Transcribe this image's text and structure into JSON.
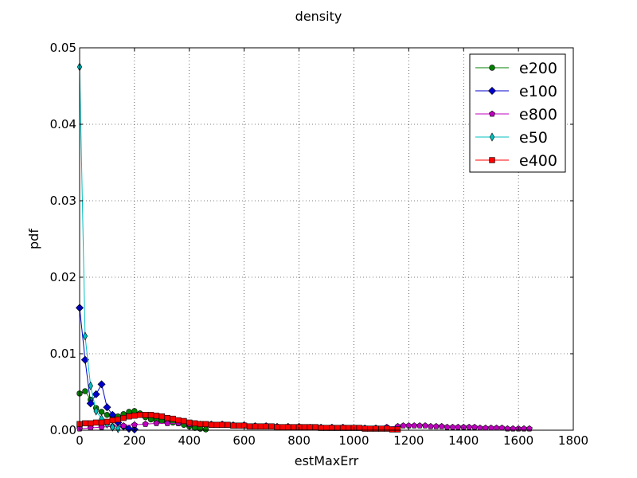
{
  "chart_data": {
    "type": "line",
    "title": "density",
    "xlabel": "estMaxErr",
    "ylabel": "pdf",
    "xlim": [
      0,
      1800
    ],
    "ylim": [
      0,
      0.05
    ],
    "x_ticks": [
      "0",
      "200",
      "400",
      "600",
      "800",
      "1000",
      "1200",
      "1400",
      "1600",
      "1800"
    ],
    "y_ticks": [
      "0.00",
      "0.01",
      "0.02",
      "0.03",
      "0.04",
      "0.05"
    ],
    "grid": true,
    "legend_position": "top-right",
    "series": [
      {
        "name": "e200",
        "color": "#007f00",
        "marker": "circle",
        "x": [
          0,
          20,
          40,
          60,
          80,
          100,
          120,
          140,
          160,
          180,
          200,
          220,
          240,
          260,
          280,
          300,
          320,
          340,
          360,
          380,
          400,
          420,
          440,
          460
        ],
        "y": [
          0.0048,
          0.0051,
          0.004,
          0.0029,
          0.0024,
          0.002,
          0.0017,
          0.0018,
          0.0021,
          0.0024,
          0.0025,
          0.0022,
          0.0017,
          0.0014,
          0.0013,
          0.0012,
          0.0011,
          0.001,
          0.0009,
          0.0007,
          0.0005,
          0.0003,
          0.0002,
          0.0001
        ]
      },
      {
        "name": "e100",
        "color": "#0000cc",
        "marker": "diamond",
        "x": [
          0,
          20,
          40,
          60,
          80,
          100,
          120,
          140,
          160,
          180,
          200
        ],
        "y": [
          0.016,
          0.0092,
          0.0035,
          0.0047,
          0.006,
          0.003,
          0.002,
          0.001,
          0.0005,
          0.0002,
          0.0001
        ]
      },
      {
        "name": "e800",
        "color": "#bf00bf",
        "marker": "pentagon",
        "x": [
          0,
          40,
          80,
          120,
          160,
          200,
          240,
          280,
          320,
          360,
          400,
          440,
          480,
          520,
          560,
          600,
          640,
          680,
          720,
          760,
          800,
          840,
          880,
          920,
          960,
          1000,
          1040,
          1080,
          1120,
          1160,
          1180,
          1200,
          1220,
          1240,
          1260,
          1280,
          1300,
          1320,
          1340,
          1360,
          1380,
          1400,
          1420,
          1440,
          1460,
          1480,
          1500,
          1520,
          1540,
          1560,
          1580,
          1600,
          1620,
          1640
        ],
        "y": [
          0.0002,
          0.0003,
          0.0004,
          0.0005,
          0.0006,
          0.0007,
          0.0008,
          0.0009,
          0.0009,
          0.0009,
          0.0008,
          0.0008,
          0.0008,
          0.0008,
          0.0007,
          0.0007,
          0.0006,
          0.0006,
          0.0005,
          0.0005,
          0.0005,
          0.0004,
          0.0004,
          0.0004,
          0.0004,
          0.0003,
          0.0003,
          0.0003,
          0.0004,
          0.0005,
          0.0006,
          0.0006,
          0.0006,
          0.0006,
          0.0006,
          0.0005,
          0.0005,
          0.0005,
          0.0004,
          0.0004,
          0.0004,
          0.0004,
          0.0004,
          0.0004,
          0.0003,
          0.0003,
          0.0003,
          0.0003,
          0.0003,
          0.0002,
          0.0002,
          0.0002,
          0.0002,
          0.0002
        ]
      },
      {
        "name": "e50",
        "color": "#00bfbf",
        "marker": "thin_diamond",
        "x": [
          0,
          20,
          40,
          60,
          80,
          100,
          120,
          140
        ],
        "y": [
          0.0475,
          0.0123,
          0.0058,
          0.0025,
          0.0015,
          0.0008,
          0.0004,
          0.0002
        ]
      },
      {
        "name": "e400",
        "color": "#ff0000",
        "marker": "square",
        "x": [
          0,
          20,
          40,
          60,
          80,
          100,
          120,
          140,
          160,
          180,
          200,
          220,
          240,
          260,
          280,
          300,
          320,
          340,
          360,
          380,
          400,
          420,
          440,
          460,
          480,
          500,
          520,
          540,
          560,
          580,
          600,
          620,
          640,
          660,
          680,
          700,
          720,
          740,
          760,
          780,
          800,
          820,
          840,
          860,
          880,
          900,
          920,
          940,
          960,
          980,
          1000,
          1020,
          1040,
          1060,
          1080,
          1100,
          1120,
          1140,
          1160
        ],
        "y": [
          0.0008,
          0.0009,
          0.0009,
          0.001,
          0.001,
          0.0011,
          0.0013,
          0.0014,
          0.0016,
          0.0018,
          0.0019,
          0.002,
          0.002,
          0.002,
          0.0019,
          0.0018,
          0.0016,
          0.0015,
          0.0013,
          0.0012,
          0.001,
          0.0009,
          0.0008,
          0.0008,
          0.0007,
          0.0007,
          0.0007,
          0.0007,
          0.0006,
          0.0006,
          0.0006,
          0.0005,
          0.0005,
          0.0005,
          0.0005,
          0.0005,
          0.0004,
          0.0004,
          0.0004,
          0.0004,
          0.0004,
          0.0004,
          0.0004,
          0.0004,
          0.0003,
          0.0003,
          0.0003,
          0.0003,
          0.0003,
          0.0003,
          0.0003,
          0.0003,
          0.0002,
          0.0002,
          0.0002,
          0.0002,
          0.0002,
          0.0001,
          0.0001
        ]
      }
    ]
  }
}
